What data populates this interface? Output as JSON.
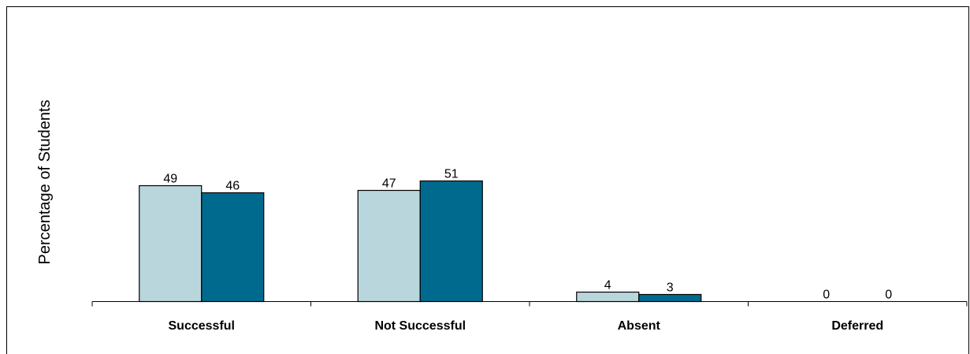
{
  "chart_data": {
    "type": "bar",
    "title": "",
    "xlabel": "",
    "ylabel": "Percentage of Students",
    "ylim": [
      0,
      100
    ],
    "grid": false,
    "categories": [
      "Successful",
      "Not Successful",
      "Absent",
      "Deferred"
    ],
    "series": [
      {
        "values": [
          49,
          47,
          4,
          0
        ],
        "color": "#b8d6dc"
      },
      {
        "values": [
          46,
          51,
          3,
          0
        ],
        "color": "#006a8e"
      }
    ],
    "data_labels": [
      [
        "49",
        "47",
        "4",
        "0"
      ],
      [
        "46",
        "51",
        "3",
        "0"
      ]
    ]
  }
}
